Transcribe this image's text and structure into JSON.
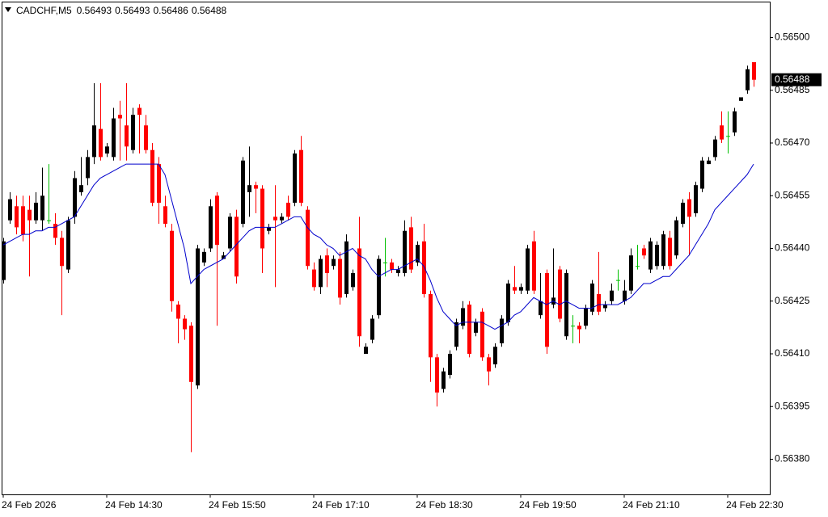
{
  "chart_data": {
    "type": "candlestick",
    "title": "CADCHF,M5",
    "open": [
      0.56431,
      0.56448,
      0.56452,
      0.56452,
      0.56451,
      0.56448,
      0.56448,
      0.56448,
      0.56447,
      0.56443,
      0.56434,
      0.56449,
      0.56456,
      0.5646,
      0.56466,
      0.56474,
      0.56467,
      0.56466,
      0.56478,
      0.56475,
      0.56468,
      0.5648,
      0.56475,
      0.56468,
      0.56464,
      0.56452,
      0.56445,
      0.56424,
      0.5642,
      0.56418,
      0.56401,
      0.56436,
      0.5644,
      0.56455,
      0.56437,
      0.5644,
      0.56449,
      0.56447,
      0.56456,
      0.56458,
      0.56457,
      0.56445,
      0.56449,
      0.56448,
      0.56453,
      0.56453,
      0.56468,
      0.56451,
      0.56434,
      0.56429,
      0.56438,
      0.56435,
      0.56437,
      0.56427,
      0.56429,
      0.5644,
      0.5641,
      0.56414,
      0.56421,
      0.56436,
      0.56436,
      0.56433,
      0.56433,
      0.56446,
      0.56436,
      0.56442,
      0.56427,
      0.56409,
      0.564,
      0.56404,
      0.56412,
      0.56418,
      0.56424,
      0.56416,
      0.56422,
      0.56409,
      0.56407,
      0.56413,
      0.56419,
      0.56429,
      0.56428,
      0.56428,
      0.56442,
      0.56421,
      0.56433,
      0.56424,
      0.56434,
      0.56415,
      0.56418,
      0.56418,
      0.56418,
      0.56422,
      0.56427,
      0.56423,
      0.56425,
      0.56431,
      0.56425,
      0.56428,
      0.56435,
      0.5644,
      0.56434,
      0.56435,
      0.56435,
      0.56443,
      0.56438,
      0.56447,
      0.56454,
      0.5645,
      0.56457,
      0.56464,
      0.56466,
      0.56475,
      0.56472,
      0.56473,
      0.56482,
      0.56485,
      0.56493
    ],
    "high": [
      0.56443,
      0.56456,
      0.56455,
      0.56455,
      0.56455,
      0.56456,
      0.56463,
      0.56464,
      0.5645,
      0.56445,
      0.56449,
      0.56462,
      0.56466,
      0.56468,
      0.56487,
      0.56487,
      0.5647,
      0.5648,
      0.56482,
      0.56487,
      0.5648,
      0.56481,
      0.56478,
      0.5647,
      0.56466,
      0.56455,
      0.56447,
      0.56425,
      0.56421,
      0.56419,
      0.56441,
      0.5644,
      0.56454,
      0.56456,
      0.56439,
      0.5645,
      0.56451,
      0.56466,
      0.56469,
      0.56459,
      0.56458,
      0.56447,
      0.56458,
      0.5645,
      0.56455,
      0.56468,
      0.56472,
      0.56452,
      0.56436,
      0.56438,
      0.5644,
      0.56438,
      0.56439,
      0.56444,
      0.56434,
      0.56449,
      0.56413,
      0.56421,
      0.56438,
      0.56443,
      0.56437,
      0.56435,
      0.56448,
      0.56449,
      0.56442,
      0.56447,
      0.56428,
      0.5641,
      0.56406,
      0.56411,
      0.5642,
      0.56425,
      0.56425,
      0.5642,
      0.56423,
      0.5641,
      0.56413,
      0.56421,
      0.56431,
      0.56435,
      0.5643,
      0.56441,
      0.56445,
      0.56433,
      0.56434,
      0.5644,
      0.56435,
      0.56434,
      0.56421,
      0.56419,
      0.56424,
      0.56431,
      0.56439,
      0.56425,
      0.5643,
      0.56434,
      0.56431,
      0.5644,
      0.56441,
      0.56441,
      0.56443,
      0.56442,
      0.56445,
      0.56445,
      0.56449,
      0.56454,
      0.56456,
      0.56459,
      0.56466,
      0.56466,
      0.56472,
      0.56479,
      0.56479,
      0.5648,
      0.56483,
      0.56492,
      0.56493
    ],
    "low": [
      0.5643,
      0.56447,
      0.56444,
      0.56442,
      0.56432,
      0.56447,
      0.56445,
      0.56447,
      0.56441,
      0.56421,
      0.56433,
      0.56447,
      0.56455,
      0.56458,
      0.56464,
      0.56465,
      0.56466,
      0.56465,
      0.56465,
      0.56465,
      0.56467,
      0.56467,
      0.56467,
      0.56452,
      0.56447,
      0.56446,
      0.56422,
      0.56413,
      0.56414,
      0.56382,
      0.564,
      0.56435,
      0.56439,
      0.56418,
      0.56437,
      0.56439,
      0.5643,
      0.56446,
      0.56449,
      0.5645,
      0.56433,
      0.56444,
      0.56429,
      0.56447,
      0.56448,
      0.56452,
      0.56452,
      0.56434,
      0.56428,
      0.56427,
      0.56429,
      0.56434,
      0.56424,
      0.56426,
      0.56428,
      0.56412,
      0.5641,
      0.56413,
      0.5642,
      0.56432,
      0.56433,
      0.56432,
      0.56432,
      0.56433,
      0.56435,
      0.56426,
      0.56402,
      0.56395,
      0.56399,
      0.56403,
      0.56411,
      0.56417,
      0.56409,
      0.56415,
      0.56408,
      0.56401,
      0.56406,
      0.56412,
      0.56418,
      0.56427,
      0.56427,
      0.56427,
      0.56427,
      0.5642,
      0.5641,
      0.56423,
      0.56419,
      0.56414,
      0.56413,
      0.56413,
      0.56417,
      0.56421,
      0.56421,
      0.56422,
      0.56424,
      0.56428,
      0.56424,
      0.56427,
      0.56434,
      0.56437,
      0.56433,
      0.56434,
      0.56434,
      0.56434,
      0.56437,
      0.56446,
      0.56438,
      0.56449,
      0.56456,
      0.56464,
      0.56465,
      0.5647,
      0.56467,
      0.56472,
      0.56482,
      0.56484,
      0.56486
    ],
    "close": [
      0.56442,
      0.56454,
      0.56446,
      0.56444,
      0.56448,
      0.56453,
      0.56455,
      0.56448,
      0.56443,
      0.56435,
      0.56448,
      0.5646,
      0.56458,
      0.56466,
      0.56475,
      0.56466,
      0.56469,
      0.56477,
      0.56477,
      0.56469,
      0.56478,
      0.56478,
      0.56468,
      0.56453,
      0.56453,
      0.56447,
      0.56425,
      0.5642,
      0.56417,
      0.56402,
      0.5644,
      0.56439,
      0.56452,
      0.56441,
      0.56438,
      0.56449,
      0.56432,
      0.56465,
      0.56458,
      0.56457,
      0.5644,
      0.56446,
      0.56448,
      0.56449,
      0.56449,
      0.56467,
      0.56453,
      0.56435,
      0.56429,
      0.56437,
      0.56433,
      0.56437,
      0.56426,
      0.56442,
      0.56433,
      0.56415,
      0.56412,
      0.5642,
      0.56437,
      0.56436,
      0.56434,
      0.56434,
      0.56445,
      0.56434,
      0.56441,
      0.56427,
      0.56409,
      0.56399,
      0.56405,
      0.5641,
      0.56419,
      0.56423,
      0.5641,
      0.56419,
      0.56409,
      0.56405,
      0.56412,
      0.5642,
      0.5643,
      0.56428,
      0.56429,
      0.5644,
      0.56428,
      0.56425,
      0.56412,
      0.56426,
      0.5642,
      0.56433,
      0.56418,
      0.56417,
      0.56423,
      0.5643,
      0.56422,
      0.56424,
      0.56428,
      0.56431,
      0.56428,
      0.56438,
      0.56435,
      0.56438,
      0.56442,
      0.56441,
      0.56444,
      0.56435,
      0.56448,
      0.56453,
      0.56449,
      0.56458,
      0.56465,
      0.56465,
      0.56471,
      0.56471,
      0.56472,
      0.56479,
      0.56483,
      0.56491,
      0.56488
    ],
    "ma": [
      0.56441,
      0.56442,
      0.56443,
      0.56444,
      0.56444,
      0.56445,
      0.56445,
      0.56446,
      0.56446,
      0.56447,
      0.56448,
      0.56449,
      0.56452,
      0.56455,
      0.56458,
      0.5646,
      0.56461,
      0.56462,
      0.56463,
      0.56464,
      0.56464,
      0.56464,
      0.56464,
      0.56464,
      0.56464,
      0.56461,
      0.56454,
      0.56447,
      0.5644,
      0.5643,
      0.56432,
      0.56434,
      0.56435,
      0.56436,
      0.56437,
      0.56439,
      0.56441,
      0.56443,
      0.56445,
      0.56446,
      0.56446,
      0.56446,
      0.56446,
      0.56447,
      0.56448,
      0.56449,
      0.56449,
      0.56446,
      0.56444,
      0.56443,
      0.56441,
      0.5644,
      0.56438,
      0.56439,
      0.5644,
      0.56438,
      0.56437,
      0.56434,
      0.56432,
      0.56433,
      0.56434,
      0.56434,
      0.56435,
      0.56436,
      0.56437,
      0.56435,
      0.56431,
      0.56426,
      0.56422,
      0.5642,
      0.56418,
      0.56419,
      0.56419,
      0.56419,
      0.56419,
      0.56418,
      0.56417,
      0.56418,
      0.56419,
      0.56421,
      0.56422,
      0.56424,
      0.56426,
      0.56425,
      0.56424,
      0.56425,
      0.56424,
      0.56425,
      0.56424,
      0.56423,
      0.56423,
      0.56423,
      0.56424,
      0.56424,
      0.56424,
      0.56424,
      0.56425,
      0.56426,
      0.56428,
      0.5643,
      0.5643,
      0.56431,
      0.56432,
      0.56432,
      0.56434,
      0.56436,
      0.56438,
      0.56441,
      0.56444,
      0.56447,
      0.56451,
      0.56453,
      0.56455,
      0.56457,
      0.56459,
      0.56461,
      0.56464
    ],
    "up_color": "#000000",
    "down_color": "#ff0000",
    "doji_color": "#00c000",
    "ma_color": "#0000cc",
    "ylim": [
      0.5637,
      0.5651
    ],
    "yticks": [
      {
        "value": 0.5638,
        "label": "0.56380"
      },
      0.56395,
      {
        "value": 0.5641,
        "label": "0.56410"
      },
      0.56425,
      {
        "value": 0.5644,
        "label": "0.56440"
      },
      0.56455,
      {
        "value": 0.5647,
        "label": "0.56470"
      },
      0.56485,
      {
        "value": 0.565,
        "label": "0.56500"
      }
    ],
    "xticks": [
      {
        "value": 0,
        "label": "24 Feb 2026"
      },
      {
        "value": 16,
        "label": "24 Feb 14:30"
      },
      {
        "value": 32,
        "label": "24 Feb 15:50"
      },
      {
        "value": 48,
        "label": "24 Feb 17:10"
      },
      {
        "value": 64,
        "label": "24 Feb 18:30"
      },
      {
        "value": 80,
        "label": "24 Feb 19:50"
      },
      {
        "value": 96,
        "label": "24 Feb 21:10"
      },
      {
        "value": 112,
        "label": "24 Feb 22:30"
      }
    ],
    "grid": false
  }
}
